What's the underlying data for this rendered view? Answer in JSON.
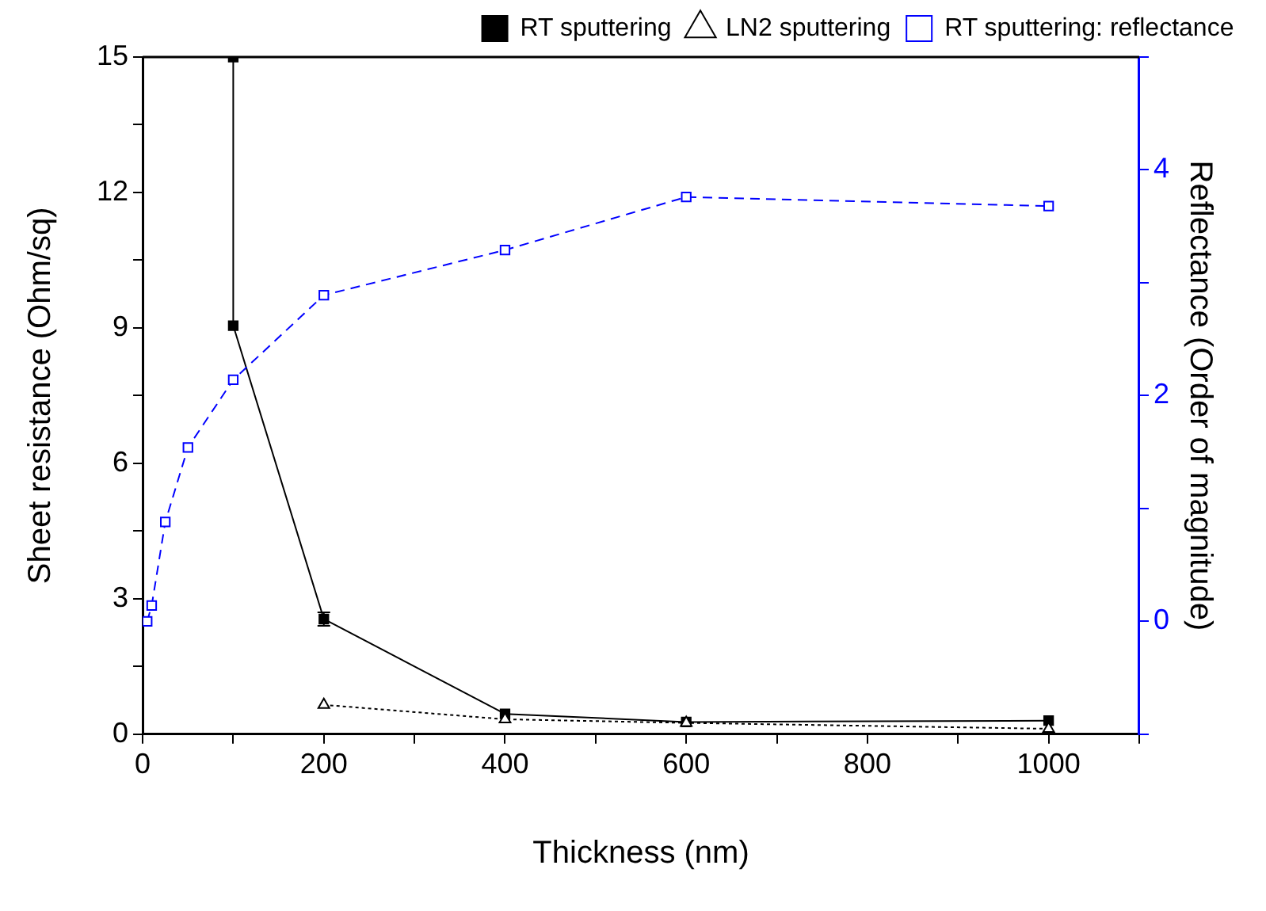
{
  "chart_data": {
    "type": "line",
    "xlabel": "Thickness (nm)",
    "ylabel": "Sheet resistance (Ohm/sq)",
    "y2label": "Reflectance (Order of magnitude)",
    "series": [
      {
        "name": "RT sputtering",
        "color": "#000000",
        "marker": "square",
        "line_style": "solid",
        "x": [
          100,
          100,
          200,
          400,
          600,
          1000
        ],
        "values": [
          15,
          9.05,
          2.55,
          0.45,
          0.27,
          0.3
        ],
        "errors": [
          null,
          null,
          0.15,
          null,
          null,
          null
        ]
      },
      {
        "name": "LN2 sputtering",
        "color": "#000000",
        "marker": "triangle",
        "line_style": "dotted",
        "x": [
          200,
          400,
          600,
          1000
        ],
        "values": [
          0.65,
          0.33,
          0.25,
          0.12
        ]
      },
      {
        "name": "RT sputtering: reflectance",
        "color": "#0000ff",
        "marker": "square",
        "line_style": "dashed",
        "axis": "y2",
        "x": [
          5,
          10,
          25,
          50,
          100,
          200,
          400,
          600,
          1000
        ],
        "values": [
          0,
          0.14,
          0.88,
          1.54,
          2.14,
          2.89,
          3.29,
          3.76,
          3.68
        ]
      }
    ],
    "xlim": [
      0,
      1100
    ],
    "xticks": [
      0,
      {
        "value": 100,
        "label": null
      },
      200,
      {
        "value": 300,
        "label": null
      },
      400,
      {
        "value": 500,
        "label": null
      },
      600,
      {
        "value": 700,
        "label": null
      },
      800,
      {
        "value": 900,
        "label": null
      },
      1000,
      {
        "value": 1100,
        "label": null
      }
    ],
    "ylim": [
      0,
      15
    ],
    "yticks": [
      0,
      {
        "value": 1.5,
        "label": null
      },
      3,
      {
        "value": 4.5,
        "label": null
      },
      6,
      {
        "value": 7.5,
        "label": null
      },
      9,
      {
        "value": 10.5,
        "label": null
      },
      12,
      {
        "value": 13.5,
        "label": null
      },
      15
    ],
    "y2lim": [
      -1,
      5
    ],
    "y2ticks": [
      {
        "value": -1,
        "label": null
      },
      0,
      {
        "value": 1,
        "label": null
      },
      2,
      {
        "value": 3,
        "label": null
      },
      4,
      {
        "value": 5,
        "label": null
      }
    ],
    "grid": false,
    "legend": "top right"
  }
}
